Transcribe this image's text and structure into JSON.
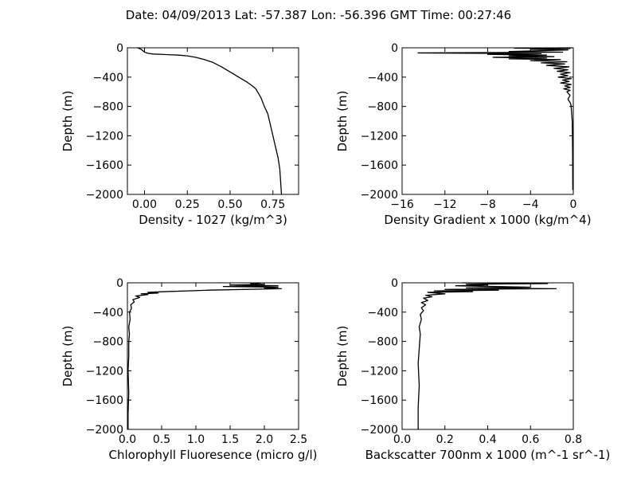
{
  "figure": {
    "title": "Date: 04/09/2013  Lat:  -57.387 Lon:  -56.396  GMT Time: 00:27:46"
  },
  "chart_data": [
    {
      "type": "line",
      "title": "",
      "xlabel": "Density - 1027 (kg/m^3)",
      "ylabel": "Depth (m)",
      "xlim": [
        -0.1,
        0.9
      ],
      "ylim": [
        -2000,
        0
      ],
      "xticks": [
        0.0,
        0.25,
        0.5,
        0.75
      ],
      "xtick_labels": [
        "0.00",
        "0.25",
        "0.50",
        "0.75"
      ],
      "yticks": [
        0,
        -400,
        -800,
        -1200,
        -1600,
        -2000
      ],
      "ytick_labels": [
        "0",
        "−400",
        "−800",
        "−1200",
        "−1600",
        "−2000"
      ],
      "grid": false,
      "series": [
        {
          "x": [
            -0.04,
            -0.03,
            -0.02,
            -0.01,
            0.0,
            0.02,
            0.05,
            0.1,
            0.15,
            0.2,
            0.25,
            0.3,
            0.35,
            0.4,
            0.45,
            0.5,
            0.55,
            0.6,
            0.63,
            0.65,
            0.68,
            0.7,
            0.72,
            0.73,
            0.74,
            0.75,
            0.76,
            0.77,
            0.78,
            0.79,
            0.8
          ],
          "y": [
            0,
            -10,
            -20,
            -40,
            -60,
            -75,
            -85,
            -90,
            -95,
            -100,
            -110,
            -130,
            -160,
            -200,
            -260,
            -330,
            -400,
            -470,
            -520,
            -560,
            -680,
            -800,
            -900,
            -1000,
            -1100,
            -1200,
            -1300,
            -1400,
            -1500,
            -1650,
            -2000
          ]
        }
      ]
    },
    {
      "type": "line",
      "title": "",
      "xlabel": "Density Gradient x 1000 (kg/m^4)",
      "ylabel": "Depth (m)",
      "xlim": [
        -16,
        0
      ],
      "ylim": [
        -2000,
        0
      ],
      "xticks": [
        -16,
        -12,
        -8,
        -4,
        0
      ],
      "xtick_labels": [
        "−16",
        "−12",
        "−8",
        "−4",
        "0"
      ],
      "yticks": [
        0,
        -400,
        -800,
        -1200,
        -1600,
        -2000
      ],
      "ytick_labels": [
        "0",
        "−400",
        "−800",
        "−1200",
        "−1600",
        "−2000"
      ],
      "grid": false,
      "series": [
        {
          "x": [
            -0.1,
            -5.5,
            -0.3,
            -4.0,
            -0.5,
            -6.0,
            -1.0,
            -14.5,
            -3.0,
            -8.0,
            -2.5,
            -6.0,
            -1.8,
            -7.5,
            -2.5,
            -6.0,
            -1.2,
            -4.0,
            -0.6,
            -3.0,
            -0.8,
            -2.5,
            -0.4,
            -1.8,
            -0.5,
            -1.5,
            -0.3,
            -1.2,
            -0.5,
            -1.4,
            -0.2,
            -1.0,
            -0.4,
            -1.2,
            -0.2,
            -0.8,
            -0.3,
            -0.9,
            -0.3,
            -0.6,
            -0.3,
            -0.5,
            -0.25,
            -0.2,
            -0.15,
            -0.1,
            -0.08,
            -0.06,
            -0.05
          ],
          "y": [
            0,
            -5,
            -10,
            -20,
            -30,
            -50,
            -60,
            -70,
            -80,
            -90,
            -100,
            -110,
            -120,
            -130,
            -140,
            -150,
            -160,
            -175,
            -190,
            -205,
            -220,
            -240,
            -260,
            -280,
            -300,
            -320,
            -340,
            -360,
            -380,
            -400,
            -420,
            -440,
            -460,
            -480,
            -500,
            -520,
            -540,
            -560,
            -580,
            -600,
            -650,
            -700,
            -760,
            -800,
            -900,
            -1000,
            -1200,
            -1500,
            -1940
          ]
        }
      ]
    },
    {
      "type": "line",
      "title": "",
      "xlabel": "Chlorophyll Fluoresence (micro g/l)",
      "ylabel": "Depth (m)",
      "xlim": [
        0,
        2.5
      ],
      "ylim": [
        -2000,
        0
      ],
      "xticks": [
        0.0,
        0.5,
        1.0,
        1.5,
        2.0,
        2.5
      ],
      "xtick_labels": [
        "0.0",
        "0.5",
        "1.0",
        "1.5",
        "2.0",
        "2.5"
      ],
      "yticks": [
        0,
        -400,
        -800,
        -1200,
        -1600,
        -2000
      ],
      "ytick_labels": [
        "0",
        "−400",
        "−800",
        "−1200",
        "−1600",
        "−2000"
      ],
      "grid": false,
      "series": [
        {
          "x": [
            1.95,
            1.8,
            2.0,
            1.5,
            2.2,
            1.4,
            2.2,
            2.0,
            2.25,
            1.2,
            0.55,
            0.3,
            0.45,
            0.2,
            0.3,
            0.12,
            0.18,
            0.08,
            0.1,
            0.05,
            0.06,
            0.03,
            0.04,
            0.02,
            0.03,
            0.02,
            0.02,
            0.01,
            0.02,
            0.01,
            0.01
          ],
          "y": [
            0,
            -10,
            -20,
            -30,
            -40,
            -50,
            -60,
            -70,
            -80,
            -100,
            -120,
            -130,
            -140,
            -150,
            -160,
            -180,
            -200,
            -230,
            -260,
            -300,
            -350,
            -400,
            -500,
            -600,
            -700,
            -800,
            -1000,
            -1200,
            -1500,
            -1800,
            -2000
          ]
        }
      ]
    },
    {
      "type": "line",
      "title": "",
      "xlabel": "Backscatter 700nm x 1000 (m^-1 sr^-1)",
      "ylabel": "Depth (m)",
      "xlim": [
        0,
        0.8
      ],
      "ylim": [
        -2000,
        0
      ],
      "xticks": [
        0.0,
        0.2,
        0.4,
        0.6,
        0.8
      ],
      "xtick_labels": [
        "0.0",
        "0.2",
        "0.4",
        "0.6",
        "0.8"
      ],
      "yticks": [
        0,
        -400,
        -800,
        -1200,
        -1600,
        -2000
      ],
      "ytick_labels": [
        "0",
        "−400",
        "−800",
        "−1200",
        "−1600",
        "−2000"
      ],
      "grid": false,
      "series": [
        {
          "x": [
            0.28,
            0.68,
            0.3,
            0.4,
            0.25,
            0.6,
            0.3,
            0.72,
            0.2,
            0.45,
            0.15,
            0.33,
            0.12,
            0.2,
            0.11,
            0.14,
            0.1,
            0.12,
            0.09,
            0.11,
            0.09,
            0.1,
            0.085,
            0.09,
            0.08,
            0.085,
            0.08,
            0.075,
            0.08,
            0.075,
            0.075
          ],
          "y": [
            0,
            -10,
            -20,
            -30,
            -40,
            -60,
            -70,
            -80,
            -90,
            -100,
            -110,
            -120,
            -130,
            -150,
            -170,
            -190,
            -210,
            -240,
            -270,
            -300,
            -340,
            -380,
            -430,
            -500,
            -600,
            -700,
            -900,
            -1100,
            -1400,
            -1700,
            -2000
          ]
        }
      ]
    }
  ]
}
